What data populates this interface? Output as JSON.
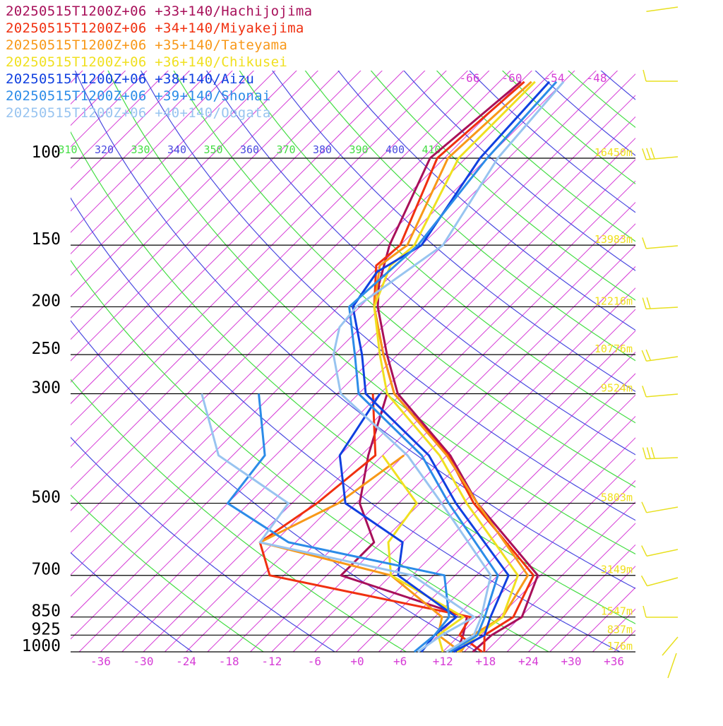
{
  "chart_data": {
    "type": "line",
    "plot_kind": "skew-T log-p sounding diagram",
    "y_axis": {
      "pressure_ticks": [
        "100",
        "150",
        "200",
        "250",
        "300",
        "500",
        "700",
        "850",
        "925",
        "1000"
      ],
      "scale": "log"
    },
    "x_axis": {
      "temperature_ticks": [
        "-36",
        "-30",
        "-24",
        "-18",
        "-12",
        "-6",
        "+0",
        "+6",
        "+12",
        "+18",
        "+24",
        "+30",
        "+36"
      ]
    },
    "height_labels": [
      {
        "p": 100,
        "text": "16450m"
      },
      {
        "p": 150,
        "text": "13983m"
      },
      {
        "p": 200,
        "text": "12216m"
      },
      {
        "p": 250,
        "text": "10776m"
      },
      {
        "p": 300,
        "text": "9524m"
      },
      {
        "p": 500,
        "text": "5803m"
      },
      {
        "p": 700,
        "text": "3149m"
      },
      {
        "p": 850,
        "text": "1547m"
      },
      {
        "p": 925,
        "text": "837m"
      },
      {
        "p": 1000,
        "text": "176m"
      }
    ],
    "isotherm_labels": [
      "-66",
      "-60",
      "-54",
      "-48"
    ],
    "theta_labels": [
      "310",
      "320",
      "330",
      "340",
      "350",
      "360",
      "370",
      "380",
      "390",
      "400",
      "410"
    ],
    "colors": {
      "isotherm": "#d63cd6",
      "theta_blue": "#4a4ae0",
      "theta_green": "#44dd44",
      "height_text": "#f0e020",
      "wind_barb": "#e8e020",
      "pressure_line": "#000000",
      "tick_text": "#d63cd6"
    },
    "series": [
      {
        "name": "20250515T1200Z+06 +33+140/Hachijojima",
        "color": "#a8105a",
        "points": [
          [
            1000,
            16.2
          ],
          [
            925,
            16.5
          ],
          [
            850,
            18.2
          ],
          [
            700,
            14.6
          ],
          [
            500,
            -4.0
          ],
          [
            400,
            -14.5
          ],
          [
            300,
            -30.5
          ],
          [
            250,
            -37.5
          ],
          [
            200,
            -45.5
          ],
          [
            180,
            -48.5
          ],
          [
            150,
            -52.5
          ],
          [
            100,
            -59.0
          ],
          [
            70,
            -57.0
          ]
        ]
      },
      {
        "name": "20250515T1200Z+06 +34+140/Miyakejima",
        "color": "#f03010",
        "points": [
          [
            1000,
            17.8
          ],
          [
            925,
            15.5
          ],
          [
            850,
            17.0
          ],
          [
            700,
            14.0
          ],
          [
            500,
            -4.5
          ],
          [
            400,
            -14.8
          ],
          [
            300,
            -31.0
          ],
          [
            250,
            -38.0
          ],
          [
            200,
            -46.0
          ],
          [
            165,
            -51.5
          ],
          [
            150,
            -51.0
          ],
          [
            100,
            -58.0
          ],
          [
            70,
            -56.5
          ]
        ]
      },
      {
        "name": "20250515T1200Z+06 +35+140/Tateyama",
        "color": "#f89818",
        "points": [
          [
            1000,
            14.5
          ],
          [
            925,
            13.8
          ],
          [
            850,
            15.5
          ],
          [
            700,
            13.2
          ],
          [
            500,
            -4.0
          ],
          [
            400,
            -15.0
          ],
          [
            300,
            -31.0
          ],
          [
            250,
            -38.0
          ],
          [
            200,
            -46.0
          ],
          [
            165,
            -51.0
          ],
          [
            150,
            -50.0
          ],
          [
            100,
            -56.5
          ],
          [
            70,
            -55.5
          ]
        ]
      },
      {
        "name": "20250515T1200Z+06 +36+140/Chikusei",
        "color": "#f0e020",
        "points": [
          [
            1000,
            14.0
          ],
          [
            925,
            14.5
          ],
          [
            850,
            15.5
          ],
          [
            700,
            11.8
          ],
          [
            500,
            -5.5
          ],
          [
            400,
            -16.0
          ],
          [
            300,
            -32.0
          ],
          [
            250,
            -38.5
          ],
          [
            200,
            -46.0
          ],
          [
            165,
            -49.5
          ],
          [
            150,
            -49.0
          ],
          [
            100,
            -55.0
          ],
          [
            70,
            -55.0
          ]
        ]
      },
      {
        "name": "20250515T1200Z+06 +38+140/Aizu",
        "color": "#1040e0",
        "points": [
          [
            1000,
            13.5
          ],
          [
            925,
            15.5
          ],
          [
            850,
            13.8
          ],
          [
            700,
            10.5
          ],
          [
            500,
            -7.0
          ],
          [
            400,
            -17.5
          ],
          [
            300,
            -35.0
          ],
          [
            250,
            -41.0
          ],
          [
            200,
            -49.0
          ],
          [
            170,
            -50.5
          ],
          [
            150,
            -48.0
          ],
          [
            100,
            -52.0
          ],
          [
            70,
            -53.0
          ]
        ]
      },
      {
        "name": "20250515T1200Z+06 +39+140/Shonai",
        "color": "#2c8ce8",
        "points": [
          [
            1000,
            13.0
          ],
          [
            925,
            14.5
          ],
          [
            850,
            13.0
          ],
          [
            700,
            9.0
          ],
          [
            500,
            -8.0
          ],
          [
            400,
            -18.5
          ],
          [
            300,
            -36.0
          ],
          [
            250,
            -42.0
          ],
          [
            200,
            -49.5
          ],
          [
            150,
            -48.5
          ],
          [
            100,
            -51.0
          ],
          [
            70,
            -52.0
          ]
        ]
      },
      {
        "name": "20250515T1200Z+06 +40+140/Oogata",
        "color": "#98c4f0",
        "points": [
          [
            1000,
            12.5
          ],
          [
            925,
            14.0
          ],
          [
            850,
            12.5
          ],
          [
            700,
            8.0
          ],
          [
            500,
            -9.0
          ],
          [
            400,
            -20.5
          ],
          [
            300,
            -38.5
          ],
          [
            250,
            -45.0
          ],
          [
            220,
            -48.0
          ],
          [
            200,
            -48.5
          ],
          [
            150,
            -45.0
          ],
          [
            100,
            -49.5
          ],
          [
            70,
            -51.0
          ]
        ]
      }
    ],
    "dewpoint_series": [
      {
        "name": "Hachijojima",
        "color": "#a8105a",
        "points": [
          [
            1000,
            14.0
          ],
          [
            925,
            12.5
          ],
          [
            850,
            10.5
          ],
          [
            700,
            -13.0
          ],
          [
            600,
            -13.0
          ],
          [
            500,
            -20.5
          ],
          [
            400,
            -26.0
          ],
          [
            300,
            -32.0
          ]
        ]
      },
      {
        "name": "Miyakejima",
        "color": "#f03010",
        "points": [
          [
            1000,
            17.5
          ],
          [
            925,
            12.0
          ],
          [
            850,
            11.0
          ],
          [
            700,
            -23.0
          ],
          [
            600,
            -29.0
          ],
          [
            500,
            -26.5
          ],
          [
            400,
            -25.0
          ],
          [
            300,
            -34.0
          ]
        ]
      },
      {
        "name": "Tateyama",
        "color": "#f89818",
        "points": [
          [
            1000,
            14.5
          ],
          [
            925,
            9.0
          ],
          [
            850,
            7.0
          ],
          [
            700,
            -6.0
          ],
          [
            600,
            -29.0
          ],
          [
            500,
            -23.5
          ],
          [
            400,
            -21.0
          ]
        ]
      },
      {
        "name": "Chikusei",
        "color": "#f0e020",
        "points": [
          [
            1000,
            12.0
          ],
          [
            925,
            9.0
          ],
          [
            850,
            10.0
          ],
          [
            700,
            -6.0
          ],
          [
            600,
            -11.0
          ],
          [
            500,
            -12.5
          ],
          [
            400,
            -24.0
          ]
        ]
      },
      {
        "name": "Aizu",
        "color": "#1040e0",
        "points": [
          [
            1000,
            9.0
          ],
          [
            925,
            8.5
          ],
          [
            850,
            9.0
          ],
          [
            700,
            -5.0
          ],
          [
            600,
            -9.0
          ],
          [
            500,
            -22.5
          ],
          [
            400,
            -30.0
          ],
          [
            300,
            -33.0
          ]
        ]
      },
      {
        "name": "Shonai",
        "color": "#2c8ce8",
        "points": [
          [
            1000,
            8.0
          ],
          [
            925,
            8.5
          ],
          [
            850,
            8.0
          ],
          [
            700,
            1.5
          ],
          [
            600,
            -25.0
          ],
          [
            500,
            -39.0
          ],
          [
            400,
            -40.5
          ],
          [
            300,
            -50.0
          ]
        ]
      },
      {
        "name": "Oogata",
        "color": "#98c4f0",
        "points": [
          [
            1000,
            8.5
          ],
          [
            925,
            9.5
          ],
          [
            850,
            11.5
          ],
          [
            700,
            -3.0
          ],
          [
            600,
            -29.0
          ],
          [
            500,
            -30.5
          ],
          [
            400,
            -47.0
          ],
          [
            300,
            -58.0
          ]
        ]
      }
    ]
  }
}
